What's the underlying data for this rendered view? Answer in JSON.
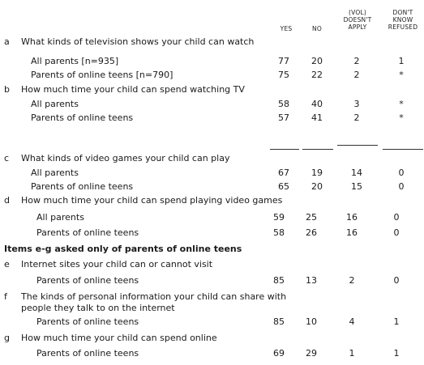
{
  "headers": {
    "yes": "YES",
    "no": "NO",
    "vol": [
      "(VOL)",
      "DOESN'T",
      "APPLY"
    ],
    "dk": [
      "DON'T",
      "KNOW",
      "REFUSED"
    ]
  },
  "items": {
    "a": {
      "letter": "a",
      "question": "What kinds of television shows your child can watch",
      "rows": [
        {
          "label": "All parents [n=935]",
          "yes": "77",
          "no": "20",
          "vol": "2",
          "dk": "1"
        },
        {
          "label": "Parents of online teens [n=790]",
          "yes": "75",
          "no": "22",
          "vol": "2",
          "dk": "*"
        }
      ]
    },
    "b": {
      "letter": "b",
      "question": "How much time your child can spend watching TV",
      "rows": [
        {
          "label": "All parents",
          "yes": "58",
          "no": "40",
          "vol": "3",
          "dk": "*"
        },
        {
          "label": "Parents of online teens",
          "yes": "57",
          "no": "41",
          "vol": "2",
          "dk": "*"
        }
      ]
    },
    "c": {
      "letter": "c",
      "question": "What kinds of video games your child can play",
      "rows": [
        {
          "label": "All parents",
          "yes": "67",
          "no": "19",
          "vol": "14",
          "dk": "0"
        },
        {
          "label": "Parents of online teens",
          "yes": "65",
          "no": "20",
          "vol": "15",
          "dk": "0"
        }
      ]
    },
    "d": {
      "letter": "d",
      "question": "How much time your child can spend playing video games",
      "rows": [
        {
          "label": "All parents",
          "yes": "59",
          "no": "25",
          "vol": "16",
          "dk": "0"
        },
        {
          "label": "Parents of online teens",
          "yes": "58",
          "no": "26",
          "vol": "16",
          "dk": "0"
        }
      ]
    },
    "section_heading": "Items e-g asked only of parents of online teens",
    "e": {
      "letter": "e",
      "question": "Internet sites your child can or cannot visit",
      "rows": [
        {
          "label": "Parents of online teens",
          "yes": "85",
          "no": "13",
          "vol": "2",
          "dk": "0"
        }
      ]
    },
    "f": {
      "letter": "f",
      "question_line1": "The kinds of personal information your child can share with",
      "question_line2": "people they talk to on the internet",
      "rows": [
        {
          "label": "Parents of online teens",
          "yes": "85",
          "no": "10",
          "vol": "4",
          "dk": "1"
        }
      ]
    },
    "g": {
      "letter": "g",
      "question": "How much time your child can spend online",
      "rows": [
        {
          "label": "Parents of online teens",
          "yes": "69",
          "no": "29",
          "vol": "1",
          "dk": "1"
        }
      ]
    }
  }
}
